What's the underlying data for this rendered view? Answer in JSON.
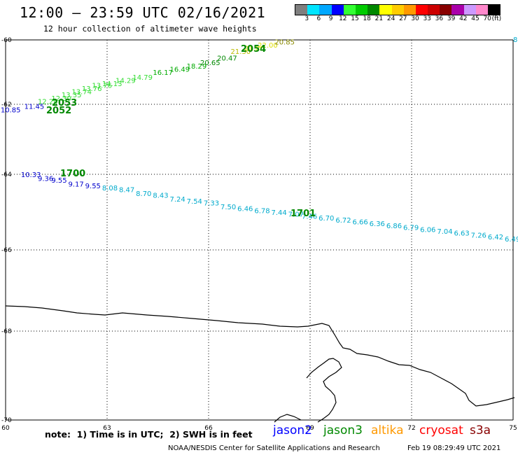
{
  "header": {
    "title": "12:00 – 23:59 UTC 02/16/2021",
    "subtitle": "12 hour collection of altimeter wave heights"
  },
  "color_scale": {
    "labels": [
      "3",
      "6",
      "9",
      "12",
      "15",
      "18",
      "21",
      "24",
      "27",
      "30",
      "33",
      "36",
      "39",
      "42",
      "45",
      "70",
      "(ft)"
    ],
    "colors": [
      "#7f7f7f",
      "#00e5ff",
      "#00a8ff",
      "#0000ff",
      "#33ff33",
      "#00cc00",
      "#008800",
      "#ffff00",
      "#ffcc00",
      "#ff9900",
      "#ff0000",
      "#cc0000",
      "#880000",
      "#aa00aa",
      "#cc99ff",
      "#ff88cc",
      "#000000"
    ]
  },
  "axes": {
    "lon_ticks": [
      "60",
      "63",
      "66",
      "69",
      "72",
      "75"
    ],
    "lat_ticks": [
      "-60",
      "-62",
      "-64",
      "-66",
      "-68",
      "-70"
    ]
  },
  "tracks": [
    {
      "id": "2052-2054",
      "labels_pass": [
        "2052",
        "2053",
        "2054"
      ],
      "points": [
        {
          "lon": 60.1,
          "lat": -62.15,
          "swh": "10.85",
          "color": "#0000cc"
        },
        {
          "lon": 60.8,
          "lat": -62.05,
          "swh": "11.45",
          "color": "#0000cc"
        },
        {
          "lon": 61.2,
          "lat": -61.9,
          "swh": "12.20",
          "color": "#33dd33"
        },
        {
          "lon": 61.6,
          "lat": -61.8,
          "swh": "12.30",
          "color": "#33dd33"
        },
        {
          "lon": 61.9,
          "lat": -61.7,
          "swh": "13.35",
          "color": "#33dd33"
        },
        {
          "lon": 62.2,
          "lat": -61.6,
          "swh": "13.74",
          "color": "#33dd33"
        },
        {
          "lon": 62.5,
          "lat": -61.5,
          "swh": "13.76",
          "color": "#33dd33"
        },
        {
          "lon": 62.8,
          "lat": -61.4,
          "swh": "13.76",
          "color": "#33dd33"
        },
        {
          "lon": 63.1,
          "lat": -61.35,
          "swh": "14.13",
          "color": "#33dd33"
        },
        {
          "lon": 63.5,
          "lat": -61.25,
          "swh": "14.29",
          "color": "#33dd33"
        },
        {
          "lon": 64.0,
          "lat": -61.15,
          "swh": "14.79",
          "color": "#33dd33"
        },
        {
          "lon": 64.6,
          "lat": -61.0,
          "swh": "16.17",
          "color": "#00aa00"
        },
        {
          "lon": 65.1,
          "lat": -60.9,
          "swh": "16.49",
          "color": "#00aa00"
        },
        {
          "lon": 65.6,
          "lat": -60.8,
          "swh": "18.29",
          "color": "#00aa00"
        },
        {
          "lon": 66.0,
          "lat": -60.7,
          "swh": "20.65",
          "color": "#008800"
        },
        {
          "lon": 66.5,
          "lat": -60.55,
          "swh": "20.47",
          "color": "#008800"
        },
        {
          "lon": 66.9,
          "lat": -60.35,
          "swh": "21.30",
          "color": "#bbbb00"
        },
        {
          "lon": 67.3,
          "lat": -60.25,
          "swh": "21.80",
          "color": "#dddd00"
        },
        {
          "lon": 67.7,
          "lat": -60.15,
          "swh": "22.00",
          "color": "#dddd00"
        },
        {
          "lon": 68.2,
          "lat": -60.05,
          "swh": "20.85",
          "color": "#888800"
        }
      ]
    },
    {
      "id": "1700-1701",
      "labels_pass": [
        "1700",
        "1701"
      ],
      "points": [
        {
          "lon": 60.7,
          "lat": -64.0,
          "swh": "10.33",
          "color": "#0000cc"
        },
        {
          "lon": 61.2,
          "lat": -64.1,
          "swh": "9.36",
          "color": "#0000cc"
        },
        {
          "lon": 61.6,
          "lat": -64.15,
          "swh": "9.55",
          "color": "#0000cc"
        },
        {
          "lon": 62.1,
          "lat": -64.25,
          "swh": "9.17",
          "color": "#0000cc"
        },
        {
          "lon": 62.6,
          "lat": -64.3,
          "swh": "9.55",
          "color": "#0000cc"
        },
        {
          "lon": 63.1,
          "lat": -64.35,
          "swh": "8.08",
          "color": "#00aacc"
        },
        {
          "lon": 63.6,
          "lat": -64.4,
          "swh": "8.47",
          "color": "#00aacc"
        },
        {
          "lon": 64.1,
          "lat": -64.5,
          "swh": "8.70",
          "color": "#00aacc"
        },
        {
          "lon": 64.6,
          "lat": -64.55,
          "swh": "8.43",
          "color": "#00aacc"
        },
        {
          "lon": 65.1,
          "lat": -64.65,
          "swh": "7.24",
          "color": "#00aacc"
        },
        {
          "lon": 65.6,
          "lat": -64.7,
          "swh": "7.54",
          "color": "#00aacc"
        },
        {
          "lon": 66.1,
          "lat": -64.75,
          "swh": "7.33",
          "color": "#00aacc"
        },
        {
          "lon": 66.6,
          "lat": -64.85,
          "swh": "7.50",
          "color": "#00aacc"
        },
        {
          "lon": 67.1,
          "lat": -64.9,
          "swh": "6.46",
          "color": "#00aacc"
        },
        {
          "lon": 67.6,
          "lat": -64.95,
          "swh": "6.78",
          "color": "#00aacc"
        },
        {
          "lon": 68.1,
          "lat": -65.0,
          "swh": "7.44",
          "color": "#00aacc"
        },
        {
          "lon": 68.6,
          "lat": -65.05,
          "swh": "7.07",
          "color": "#00aacc"
        },
        {
          "lon": 69.0,
          "lat": -65.1,
          "swh": "7.46",
          "color": "#00aacc"
        },
        {
          "lon": 69.5,
          "lat": -65.15,
          "swh": "6.70",
          "color": "#00aacc"
        },
        {
          "lon": 70.0,
          "lat": -65.2,
          "swh": "6.72",
          "color": "#00aacc"
        },
        {
          "lon": 70.5,
          "lat": -65.25,
          "swh": "6.66",
          "color": "#00aacc"
        },
        {
          "lon": 71.0,
          "lat": -65.3,
          "swh": "6.36",
          "color": "#00aacc"
        },
        {
          "lon": 71.5,
          "lat": -65.35,
          "swh": "6.86",
          "color": "#00aacc"
        },
        {
          "lon": 72.0,
          "lat": -65.4,
          "swh": "6.79",
          "color": "#00aacc"
        },
        {
          "lon": 72.5,
          "lat": -65.45,
          "swh": "6.06",
          "color": "#00aacc"
        },
        {
          "lon": 73.0,
          "lat": -65.5,
          "swh": "7.04",
          "color": "#00aacc"
        },
        {
          "lon": 73.5,
          "lat": -65.55,
          "swh": "6.63",
          "color": "#00aacc"
        },
        {
          "lon": 74.0,
          "lat": -65.6,
          "swh": "7.26",
          "color": "#00aacc"
        },
        {
          "lon": 74.5,
          "lat": -65.65,
          "swh": "6.42",
          "color": "#00aacc"
        },
        {
          "lon": 75.0,
          "lat": -65.7,
          "swh": "6.49",
          "color": "#00aacc"
        }
      ]
    }
  ],
  "pass_ids": {
    "p2052": "2052",
    "p2053": "2053",
    "p2054": "2054",
    "p1700": "1700",
    "p1701": "1701"
  },
  "edge_label": "8",
  "footer": {
    "note": "note:  1) Time is in UTC;  2) SWH is in feet",
    "satellites": [
      {
        "name": "jason2",
        "color": "#0000ff"
      },
      {
        "name": "jason3",
        "color": "#008800"
      },
      {
        "name": "altika",
        "color": "#ff9900"
      },
      {
        "name": "cryosat",
        "color": "#ff0000"
      },
      {
        "name": "s3a",
        "color": "#880000"
      }
    ],
    "credit": "NOAA/NESDIS Center for Satellite Applications and Research",
    "timestamp": "Feb 19 08:29:49 UTC 2021"
  }
}
